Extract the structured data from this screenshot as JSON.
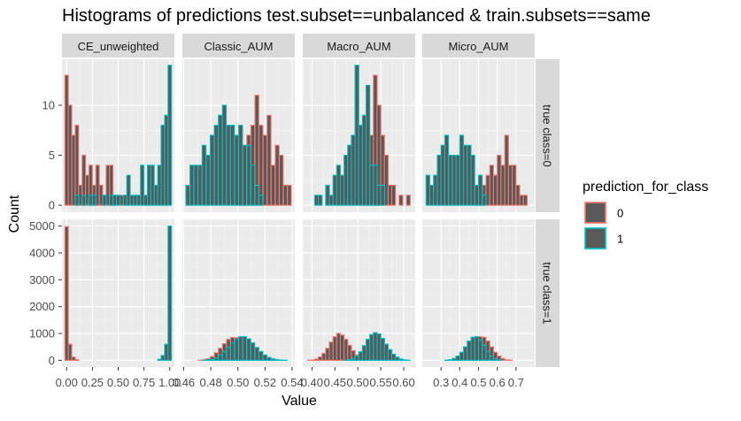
{
  "chart_data": {
    "type": "bar",
    "title": "Histograms of predictions test.subset==unbalanced & train.subsets==same",
    "xlabel": "Value",
    "ylabel": "Count",
    "legend": {
      "title": "prediction_for_class",
      "placement": "right",
      "entries": [
        {
          "label": "0",
          "fill": "#595959",
          "outline": "#F8766D"
        },
        {
          "label": "1",
          "fill": "#595959",
          "outline": "#00BFC4"
        }
      ]
    },
    "colors": {
      "class0_outline": "#F8766D",
      "class1_outline": "#00BFC4",
      "bar_fill": "#595959",
      "panel_bg": "#EBEBEB",
      "strip_bg": "#D9D9D9"
    },
    "grid": true,
    "columns": [
      "CE_unweighted",
      "Classic_AUM",
      "Macro_AUM",
      "Micro_AUM"
    ],
    "rows": [
      "true class=0",
      "true class=1"
    ],
    "x_axes": [
      {
        "xlim": [
          -0.045,
          1.045
        ],
        "ticks": [
          0.0,
          0.25,
          0.5,
          0.75,
          1.0
        ],
        "tick_labels": [
          "0.00",
          "0.25",
          "0.50",
          "0.75",
          "1.00"
        ]
      },
      {
        "xlim": [
          0.459,
          0.542
        ],
        "ticks": [
          0.46,
          0.48,
          0.5,
          0.52,
          0.54
        ],
        "tick_labels": [
          "0.46",
          "0.48",
          "0.50",
          "0.52",
          "0.54"
        ]
      },
      {
        "xlim": [
          0.38,
          0.625
        ],
        "ticks": [
          0.4,
          0.45,
          0.5,
          0.55,
          0.6
        ],
        "tick_labels": [
          "0.40",
          "0.45",
          "0.50",
          "0.55",
          "0.60"
        ]
      },
      {
        "xlim": [
          0.2,
          0.8
        ],
        "ticks": [
          0.3,
          0.4,
          0.5,
          0.6,
          0.7
        ],
        "tick_labels": [
          "0.3",
          "0.4",
          "0.5",
          "0.6",
          "0.7"
        ]
      }
    ],
    "y_axes": [
      {
        "ylim": [
          -0.7,
          14.6
        ],
        "ticks": [
          0,
          5,
          10
        ],
        "tick_labels": [
          "0",
          "5",
          "10"
        ]
      },
      {
        "ylim": [
          -250,
          5250
        ],
        "ticks": [
          0,
          1000,
          2000,
          3000,
          4000,
          5000
        ],
        "tick_labels": [
          "0",
          "1000",
          "2000",
          "3000",
          "4000",
          "5000"
        ]
      }
    ],
    "panels": [
      {
        "row": 0,
        "col": 0,
        "binwidth": 0.0333,
        "series": [
          {
            "name": "0",
            "x": [
              0.0,
              0.033,
              0.067,
              0.1,
              0.133,
              0.167,
              0.2,
              0.233,
              0.267,
              0.3,
              0.333,
              0.367,
              0.4,
              0.433,
              0.467,
              0.5,
              0.533,
              0.567
            ],
            "values": [
              13,
              10,
              7,
              8,
              2,
              5,
              3,
              4,
              2,
              4,
              2,
              1,
              4,
              4,
              1,
              0,
              1,
              0
            ]
          },
          {
            "name": "1",
            "x": [
              0.1,
              0.167,
              0.233,
              0.267,
              0.367,
              0.433,
              0.467,
              0.5,
              0.567,
              0.6,
              0.633,
              0.667,
              0.7,
              0.733,
              0.767,
              0.8,
              0.833,
              0.867,
              0.9,
              0.933,
              0.967,
              1.0
            ],
            "values": [
              1,
              1,
              1,
              1,
              1,
              1,
              1,
              1,
              1,
              3,
              1,
              1,
              1,
              4,
              1,
              4,
              4,
              2,
              4,
              8,
              9,
              14
            ]
          }
        ]
      },
      {
        "row": 0,
        "col": 1,
        "binwidth": 0.00283,
        "series": [
          {
            "name": "0",
            "x": [
              0.463,
              0.466,
              0.469,
              0.472,
              0.475,
              0.478,
              0.481,
              0.484,
              0.487,
              0.49,
              0.493,
              0.496,
              0.499,
              0.502,
              0.505,
              0.508,
              0.511,
              0.514,
              0.517,
              0.52,
              0.523,
              0.526,
              0.529,
              0.532,
              0.535,
              0.538
            ],
            "values": [
              0,
              0,
              0,
              0,
              0,
              0,
              0,
              0,
              0,
              0,
              0,
              0,
              1,
              3,
              5,
              7,
              8,
              11,
              8,
              7,
              9,
              4,
              6,
              5,
              2,
              2
            ]
          },
          {
            "name": "1",
            "x": [
              0.463,
              0.466,
              0.469,
              0.472,
              0.475,
              0.478,
              0.481,
              0.484,
              0.487,
              0.49,
              0.493,
              0.496,
              0.499,
              0.502,
              0.505,
              0.508,
              0.511,
              0.514,
              0.517
            ],
            "values": [
              2,
              4,
              4,
              4,
              6,
              5,
              7,
              8,
              9,
              10,
              8,
              8,
              7,
              8,
              6,
              6,
              4,
              2,
              1
            ]
          }
        ]
      },
      {
        "row": 0,
        "col": 2,
        "binwidth": 0.0082,
        "series": [
          {
            "name": "0",
            "x": [
              0.458,
              0.466,
              0.474,
              0.482,
              0.49,
              0.498,
              0.506,
              0.514,
              0.522,
              0.53,
              0.538,
              0.546,
              0.554,
              0.562,
              0.57,
              0.578,
              0.586,
              0.594,
              0.602,
              0.61
            ],
            "values": [
              0,
              0,
              0,
              0,
              0,
              0,
              0,
              3,
              3,
              7,
              13,
              10,
              7,
              5,
              2,
              2,
              0,
              1,
              0,
              1
            ]
          },
          {
            "name": "1",
            "x": [
              0.394,
              0.402,
              0.41,
              0.418,
              0.426,
              0.434,
              0.442,
              0.45,
              0.458,
              0.466,
              0.474,
              0.482,
              0.49,
              0.498,
              0.506,
              0.514,
              0.522,
              0.53,
              0.538,
              0.546,
              0.554,
              0.562,
              0.57,
              0.578,
              0.586,
              0.594,
              0.602,
              0.61
            ],
            "values": [
              0,
              0,
              1,
              1,
              0,
              2,
              1,
              3,
              4,
              3,
              5,
              6,
              7,
              14,
              8,
              9,
              12,
              4,
              4,
              2,
              2,
              0,
              0,
              0,
              0,
              0,
              0,
              0
            ]
          }
        ]
      },
      {
        "row": 0,
        "col": 3,
        "binwidth": 0.0197,
        "series": [
          {
            "name": "0",
            "x": [
              0.31,
              0.33,
              0.35,
              0.37,
              0.39,
              0.41,
              0.43,
              0.45,
              0.47,
              0.49,
              0.51,
              0.53,
              0.55,
              0.57,
              0.59,
              0.61,
              0.63,
              0.65,
              0.67,
              0.69,
              0.71,
              0.73,
              0.75
            ],
            "values": [
              0,
              0,
              0,
              0,
              0,
              0,
              0,
              0,
              0,
              2,
              2,
              2,
              3,
              4,
              3,
              5,
              4,
              7,
              4,
              4,
              2,
              1,
              1
            ]
          },
          {
            "name": "1",
            "x": [
              0.23,
              0.25,
              0.27,
              0.29,
              0.31,
              0.33,
              0.35,
              0.37,
              0.39,
              0.41,
              0.43,
              0.45,
              0.47,
              0.49,
              0.51,
              0.53
            ],
            "values": [
              3,
              2,
              3,
              5,
              6,
              7,
              5,
              5,
              5,
              7,
              6,
              6,
              5,
              2,
              3,
              1
            ]
          }
        ]
      },
      {
        "row": 1,
        "col": 0,
        "binwidth": 0.0333,
        "series": [
          {
            "name": "0",
            "x": [
              0.0,
              0.033,
              0.067,
              0.1
            ],
            "values": [
              4980,
              600,
              120,
              30
            ]
          },
          {
            "name": "1",
            "x": [
              0.9,
              0.933,
              0.967,
              1.0
            ],
            "values": [
              40,
              180,
              600,
              5000
            ]
          }
        ]
      },
      {
        "row": 1,
        "col": 1,
        "binwidth": 0.00283,
        "series": [
          {
            "name": "0",
            "x": [
              0.472,
              0.475,
              0.478,
              0.481,
              0.484,
              0.487,
              0.49,
              0.493,
              0.496,
              0.499,
              0.502,
              0.505,
              0.508,
              0.511,
              0.514,
              0.517,
              0.52,
              0.523,
              0.526
            ],
            "values": [
              5,
              20,
              60,
              140,
              280,
              450,
              620,
              780,
              850,
              840,
              760,
              620,
              450,
              290,
              160,
              75,
              30,
              10,
              3
            ]
          },
          {
            "name": "1",
            "x": [
              0.475,
              0.478,
              0.481,
              0.484,
              0.487,
              0.49,
              0.493,
              0.496,
              0.499,
              0.502,
              0.505,
              0.508,
              0.511,
              0.514,
              0.517,
              0.52,
              0.523,
              0.526,
              0.529,
              0.532,
              0.535
            ],
            "values": [
              5,
              15,
              40,
              90,
              180,
              320,
              480,
              640,
              780,
              880,
              880,
              800,
              650,
              480,
              330,
              200,
              110,
              55,
              25,
              10,
              3
            ]
          }
        ]
      },
      {
        "row": 1,
        "col": 2,
        "binwidth": 0.0082,
        "series": [
          {
            "name": "0",
            "x": [
              0.394,
              0.402,
              0.41,
              0.418,
              0.426,
              0.434,
              0.442,
              0.45,
              0.458,
              0.466,
              0.474,
              0.482,
              0.49,
              0.498,
              0.506,
              0.514,
              0.522
            ],
            "values": [
              5,
              15,
              50,
              130,
              260,
              450,
              680,
              880,
              1000,
              940,
              780,
              560,
              360,
              200,
              100,
              40,
              15
            ]
          },
          {
            "name": "1",
            "x": [
              0.474,
              0.482,
              0.49,
              0.498,
              0.506,
              0.514,
              0.522,
              0.53,
              0.538,
              0.546,
              0.554,
              0.562,
              0.57,
              0.578,
              0.586,
              0.594,
              0.602,
              0.61
            ],
            "values": [
              5,
              20,
              60,
              160,
              320,
              550,
              780,
              960,
              1030,
              980,
              820,
              600,
              400,
              230,
              120,
              50,
              20,
              5
            ]
          }
        ]
      },
      {
        "row": 1,
        "col": 3,
        "binwidth": 0.0197,
        "series": [
          {
            "name": "0",
            "x": [
              0.39,
              0.41,
              0.43,
              0.45,
              0.47,
              0.49,
              0.51,
              0.53,
              0.55,
              0.57,
              0.59,
              0.61,
              0.63,
              0.65,
              0.67
            ],
            "values": [
              15,
              60,
              160,
              330,
              560,
              760,
              880,
              860,
              720,
              500,
              300,
              160,
              70,
              25,
              8
            ]
          },
          {
            "name": "1",
            "x": [
              0.33,
              0.35,
              0.37,
              0.39,
              0.41,
              0.43,
              0.45,
              0.47,
              0.49,
              0.51,
              0.53,
              0.55,
              0.57,
              0.59,
              0.61
            ],
            "values": [
              8,
              25,
              70,
              160,
              300,
              500,
              720,
              860,
              880,
              760,
              560,
              330,
              160,
              60,
              15
            ]
          }
        ]
      }
    ]
  }
}
